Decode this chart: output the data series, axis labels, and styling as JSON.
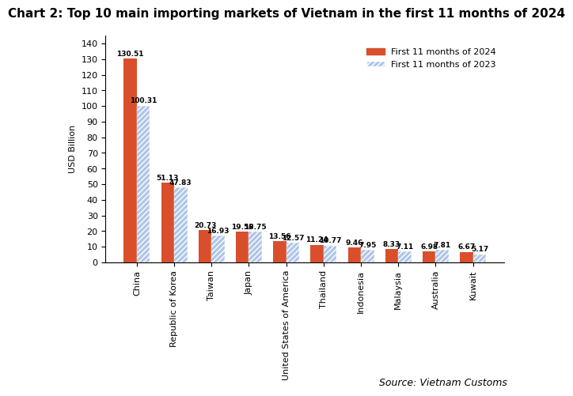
{
  "title": "Chart 2: Top 10 main importing markets of Vietnam in the first 11 months of 2024",
  "ylabel": "USD Billion",
  "source": "Source: Vietnam Customs",
  "categories": [
    "China",
    "Republic of Korea",
    "Taiwan",
    "Japan",
    "United States of America",
    "Thailand",
    "Indonesia",
    "Malaysia",
    "Australia",
    "Kuwait"
  ],
  "values_2024": [
    130.51,
    51.13,
    20.73,
    19.58,
    13.56,
    11.24,
    9.46,
    8.33,
    6.98,
    6.67
  ],
  "values_2023": [
    100.31,
    47.83,
    16.93,
    19.75,
    12.57,
    10.77,
    7.95,
    7.11,
    7.81,
    5.17
  ],
  "color_2024": "#d94f2b",
  "color_2023": "#aec6e8",
  "legend_2024": "First 11 months of 2024",
  "legend_2023": "First 11 months of 2023",
  "ylim": [
    0,
    145
  ],
  "yticks": [
    0,
    10,
    20,
    30,
    40,
    50,
    60,
    70,
    80,
    90,
    100,
    110,
    120,
    130,
    140
  ],
  "bar_width": 0.35,
  "title_fontsize": 11,
  "label_fontsize": 6.5,
  "axis_fontsize": 8,
  "legend_fontsize": 8,
  "source_fontsize": 9
}
